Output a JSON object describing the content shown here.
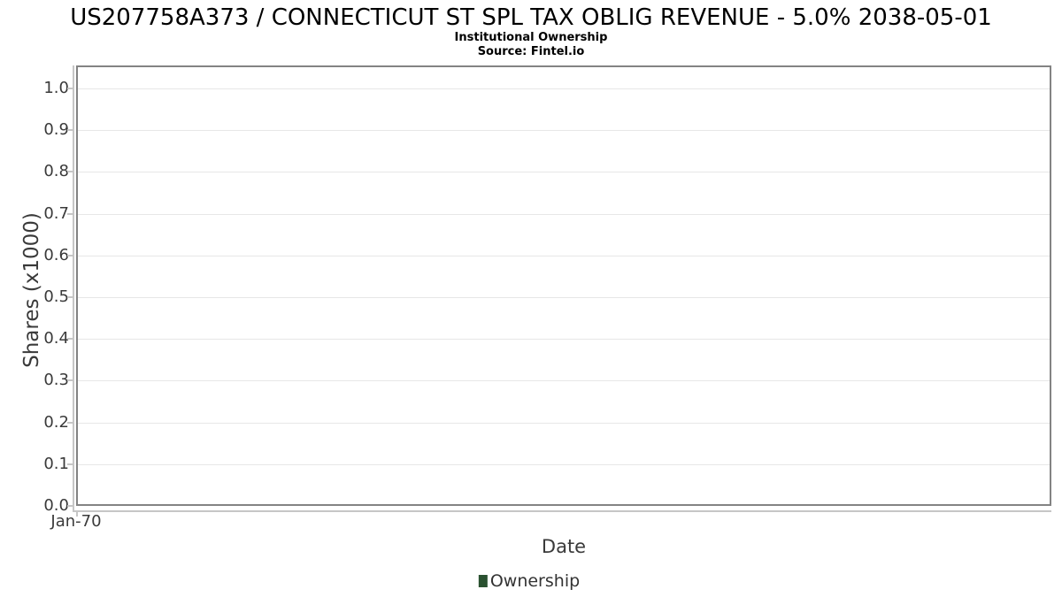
{
  "chart_data": {
    "type": "line",
    "title": "US207758A373 / CONNECTICUT ST SPL TAX OBLIG REVENUE - 5.0% 2038-05-01",
    "subtitle": "Institutional Ownership",
    "source": "Source: Fintel.io",
    "xlabel": "Date",
    "ylabel": "Shares (x1000)",
    "x": [],
    "series": [
      {
        "name": "Ownership",
        "color": "#2a5130",
        "values": []
      }
    ],
    "xticks": [
      "Jan-70"
    ],
    "yticks": [
      "0.0",
      "0.1",
      "0.2",
      "0.3",
      "0.4",
      "0.5",
      "0.6",
      "0.7",
      "0.8",
      "0.9",
      "1.0"
    ],
    "ylim": [
      0,
      1.05
    ],
    "grid": "horizontal",
    "legend_position": "bottom",
    "empty_plot": true
  },
  "theme": {
    "plot_border_color": "#838383",
    "gridline_color": "#e7e7e7",
    "axis_line_color": "#c6c6c6",
    "text_color": "#3a3a3a",
    "title_color": "#000000",
    "ownership_color": "#2a5130"
  }
}
